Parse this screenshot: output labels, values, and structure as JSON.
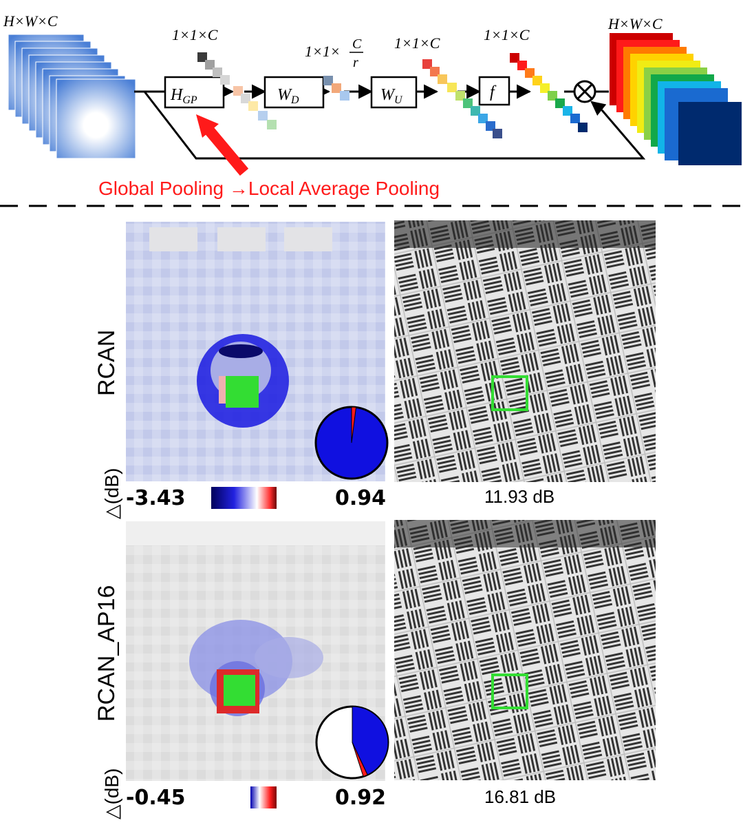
{
  "diagram": {
    "input_dims": "H×W×C",
    "output_dims": "H×W×C",
    "dims_gp": "1×1×C",
    "dims_wd_prefix": "1×1×",
    "dims_wd_num": "C",
    "dims_wd_den": "r",
    "dims_wu": "1×1×C",
    "dims_f": "1×1×C",
    "blocks": {
      "hgp_main": "H",
      "hgp_sub": "GP",
      "wd_main": "W",
      "wd_sub": "D",
      "wu_main": "W",
      "wu_sub": "U",
      "f": "f"
    },
    "multiply_symbol": "⊗",
    "annotation": "Global Pooling →Local Average Pooling",
    "colors": {
      "accent_red": "#ff1a1a",
      "pale_blue": "#3a6fd0",
      "navy": "#002a6e"
    }
  },
  "panels": [
    {
      "row_label": "RCAN",
      "delta_label": "△(dB)",
      "cmap_min": "-3.43",
      "cmap_max": "0.94",
      "psnr": "11.93 dB",
      "pie_red_fraction": 0.02
    },
    {
      "row_label": "RCAN_AP16",
      "delta_label": "△(dB)",
      "cmap_min": "-0.45",
      "cmap_max": "0.92",
      "psnr": "16.81 dB",
      "pie_red_fraction": 0.02,
      "pie_blue_fraction": 0.43
    }
  ]
}
